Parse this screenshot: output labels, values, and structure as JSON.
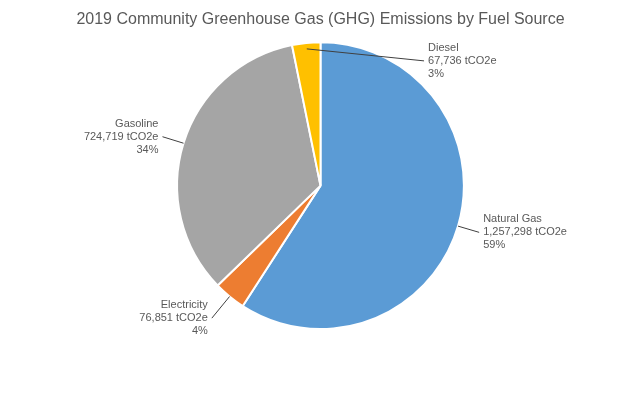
{
  "chart_data": {
    "type": "pie",
    "title": "2019 Community Greenhouse Gas (GHG) Emissions by Fuel Source",
    "categories": [
      "Natural Gas",
      "Electricity",
      "Gasoline",
      "Diesel"
    ],
    "values": [
      1257298,
      76851,
      724719,
      67736
    ],
    "value_labels": [
      "1,257,298 tCO2e",
      "76,851 tCO2e",
      "724,719 tCO2e",
      "67,736 tCO2e"
    ],
    "percents": [
      {
        "value": 59,
        "label": "59%"
      },
      {
        "value": 4,
        "label": "4%"
      },
      {
        "value": 34,
        "label": "34%"
      },
      {
        "value": 3,
        "label": "3%"
      }
    ],
    "colors": [
      "#5b9bd5",
      "#ed7d31",
      "#a5a5a5",
      "#ffc000"
    ],
    "data_labels": true
  }
}
